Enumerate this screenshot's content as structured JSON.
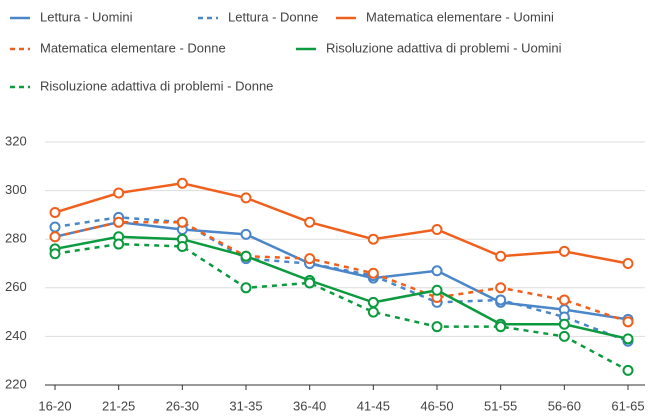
{
  "chart_data": {
    "type": "line",
    "categories": [
      "16-20",
      "21-25",
      "26-30",
      "31-35",
      "36-40",
      "41-45",
      "46-50",
      "51-55",
      "56-60",
      "61-65"
    ],
    "series": [
      {
        "name": "Lettura - Uomini",
        "color": "#4a86c8",
        "dashed": false,
        "values": [
          281,
          287,
          284,
          282,
          270,
          264,
          267,
          254,
          251,
          247
        ]
      },
      {
        "name": "Lettura - Donne",
        "color": "#4a86c8",
        "dashed": true,
        "values": [
          285,
          289,
          287,
          272,
          270,
          265,
          254,
          255,
          248,
          238
        ]
      },
      {
        "name": "Matematica elementare - Uomini",
        "color": "#f0601c",
        "dashed": false,
        "values": [
          291,
          299,
          303,
          297,
          287,
          280,
          284,
          273,
          275,
          270
        ]
      },
      {
        "name": "Matematica elementare - Donne",
        "color": "#f0601c",
        "dashed": true,
        "values": [
          281,
          287,
          287,
          273,
          272,
          266,
          256,
          260,
          255,
          246
        ]
      },
      {
        "name": "Risoluzione adattiva di problemi - Uomini",
        "color": "#0c9a3e",
        "dashed": false,
        "values": [
          276,
          281,
          280,
          273,
          263,
          254,
          259,
          245,
          245,
          239
        ]
      },
      {
        "name": "Risoluzione adattiva di problemi - Donne",
        "color": "#0c9a3e",
        "dashed": true,
        "values": [
          274,
          278,
          277,
          260,
          262,
          250,
          244,
          244,
          240,
          226
        ]
      }
    ],
    "ylim": [
      220,
      320
    ],
    "yticks": [
      220,
      240,
      260,
      280,
      300,
      320
    ],
    "grid": true,
    "legend": "top"
  }
}
